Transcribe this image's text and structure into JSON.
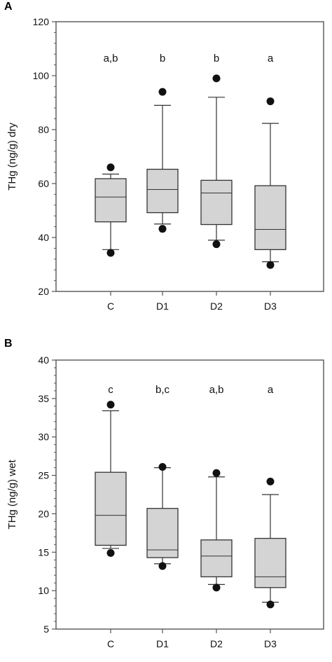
{
  "chart_data": [
    {
      "type": "box",
      "panel_label": "A",
      "ylabel": "THg (ng/g) dry",
      "ylim": [
        20,
        120
      ],
      "yticks": [
        20,
        40,
        60,
        80,
        100,
        120
      ],
      "categories": [
        "C",
        "D1",
        "D2",
        "D3"
      ],
      "significance": [
        "a,b",
        "b",
        "b",
        "a"
      ],
      "boxes": [
        {
          "whisker_low": 35.5,
          "q1": 45.8,
          "median": 55,
          "q3": 61.8,
          "whisker_high": 63.5,
          "outliers": [
            34.3,
            66
          ]
        },
        {
          "whisker_low": 45,
          "q1": 49.2,
          "median": 57.8,
          "q3": 65.3,
          "whisker_high": 89,
          "outliers": [
            43.2,
            94
          ]
        },
        {
          "whisker_low": 39,
          "q1": 44.8,
          "median": 56.5,
          "q3": 61.2,
          "whisker_high": 92,
          "outliers": [
            37.5,
            99
          ]
        },
        {
          "whisker_low": 31,
          "q1": 35.5,
          "median": 43,
          "q3": 59.2,
          "whisker_high": 82.3,
          "outliers": [
            29.8,
            90.5
          ]
        }
      ]
    },
    {
      "type": "box",
      "panel_label": "B",
      "ylabel": "THg (ng/g) wet",
      "ylim": [
        5,
        40
      ],
      "yticks": [
        5,
        10,
        15,
        20,
        25,
        30,
        35,
        40
      ],
      "categories": [
        "C",
        "D1",
        "D2",
        "D3"
      ],
      "significance": [
        "c",
        "b,c",
        "a,b",
        "a"
      ],
      "boxes": [
        {
          "whisker_low": 15.5,
          "q1": 15.9,
          "median": 19.8,
          "q3": 25.4,
          "whisker_high": 33.4,
          "outliers": [
            14.9,
            34.2
          ]
        },
        {
          "whisker_low": 13.5,
          "q1": 14.3,
          "median": 15.3,
          "q3": 20.7,
          "whisker_high": 26,
          "outliers": [
            13.2,
            26.1
          ]
        },
        {
          "whisker_low": 10.8,
          "q1": 11.8,
          "median": 14.5,
          "q3": 16.6,
          "whisker_high": 24.8,
          "outliers": [
            10.4,
            25.3
          ]
        },
        {
          "whisker_low": 8.5,
          "q1": 10.4,
          "median": 11.8,
          "q3": 16.8,
          "whisker_high": 22.5,
          "outliers": [
            8.2,
            24.2
          ]
        }
      ]
    }
  ]
}
